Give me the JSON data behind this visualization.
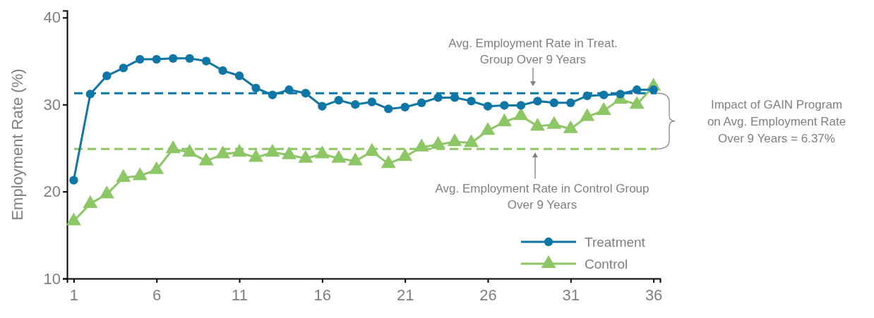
{
  "chart_data": {
    "type": "line",
    "ylabel": "Employment Rate (%)",
    "x": [
      1,
      2,
      3,
      4,
      5,
      6,
      7,
      8,
      9,
      10,
      11,
      12,
      13,
      14,
      15,
      16,
      17,
      18,
      19,
      20,
      21,
      22,
      23,
      24,
      25,
      26,
      27,
      28,
      29,
      30,
      31,
      32,
      33,
      34,
      35,
      36
    ],
    "xlim": [
      0.6,
      36.4
    ],
    "xticks": [
      1,
      6,
      11,
      16,
      21,
      26,
      31,
      36
    ],
    "ylim": [
      10,
      40.8
    ],
    "yticks": [
      10,
      20,
      30,
      40
    ],
    "series": [
      {
        "name": "Treatment",
        "color": "#0f76a6",
        "marker": "circle",
        "values": [
          21.3,
          31.2,
          33.3,
          34.2,
          35.2,
          35.2,
          35.3,
          35.3,
          35.0,
          33.9,
          33.3,
          31.9,
          31.1,
          31.7,
          31.3,
          29.8,
          30.5,
          30.0,
          30.3,
          29.5,
          29.7,
          30.2,
          30.8,
          30.8,
          30.4,
          29.8,
          29.9,
          29.9,
          30.4,
          30.2,
          30.2,
          31.0,
          31.1,
          31.2,
          31.7,
          31.7
        ]
      },
      {
        "name": "Control",
        "color": "#8cc665",
        "marker": "triangle",
        "values": [
          16.6,
          18.6,
          19.7,
          21.6,
          21.8,
          22.5,
          24.9,
          24.5,
          23.5,
          24.3,
          24.5,
          23.9,
          24.5,
          24.2,
          23.8,
          24.3,
          23.8,
          23.5,
          24.6,
          23.2,
          24.0,
          25.1,
          25.4,
          25.7,
          25.6,
          27.0,
          28.0,
          28.7,
          27.5,
          27.7,
          27.2,
          28.6,
          29.3,
          30.6,
          30.0,
          32.1
        ]
      }
    ],
    "ref_lines": [
      {
        "axis": "y",
        "value": 31.3,
        "label": "Avg. Employment Rate in Treat. Group Over 9 Years",
        "color": "#0f76a6",
        "line_style": "dashed"
      },
      {
        "axis": "y",
        "value": 24.9,
        "label": "Avg. Employment Rate in Control Group Over 9 Years",
        "color": "#8cc665",
        "line_style": "dashed"
      }
    ],
    "annotations": [
      "Impact of GAIN Program on Avg. Employment Rate Over 9 Years = 6.37%"
    ],
    "grid": false,
    "legend": "bottom right",
    "line_style": "solid"
  }
}
